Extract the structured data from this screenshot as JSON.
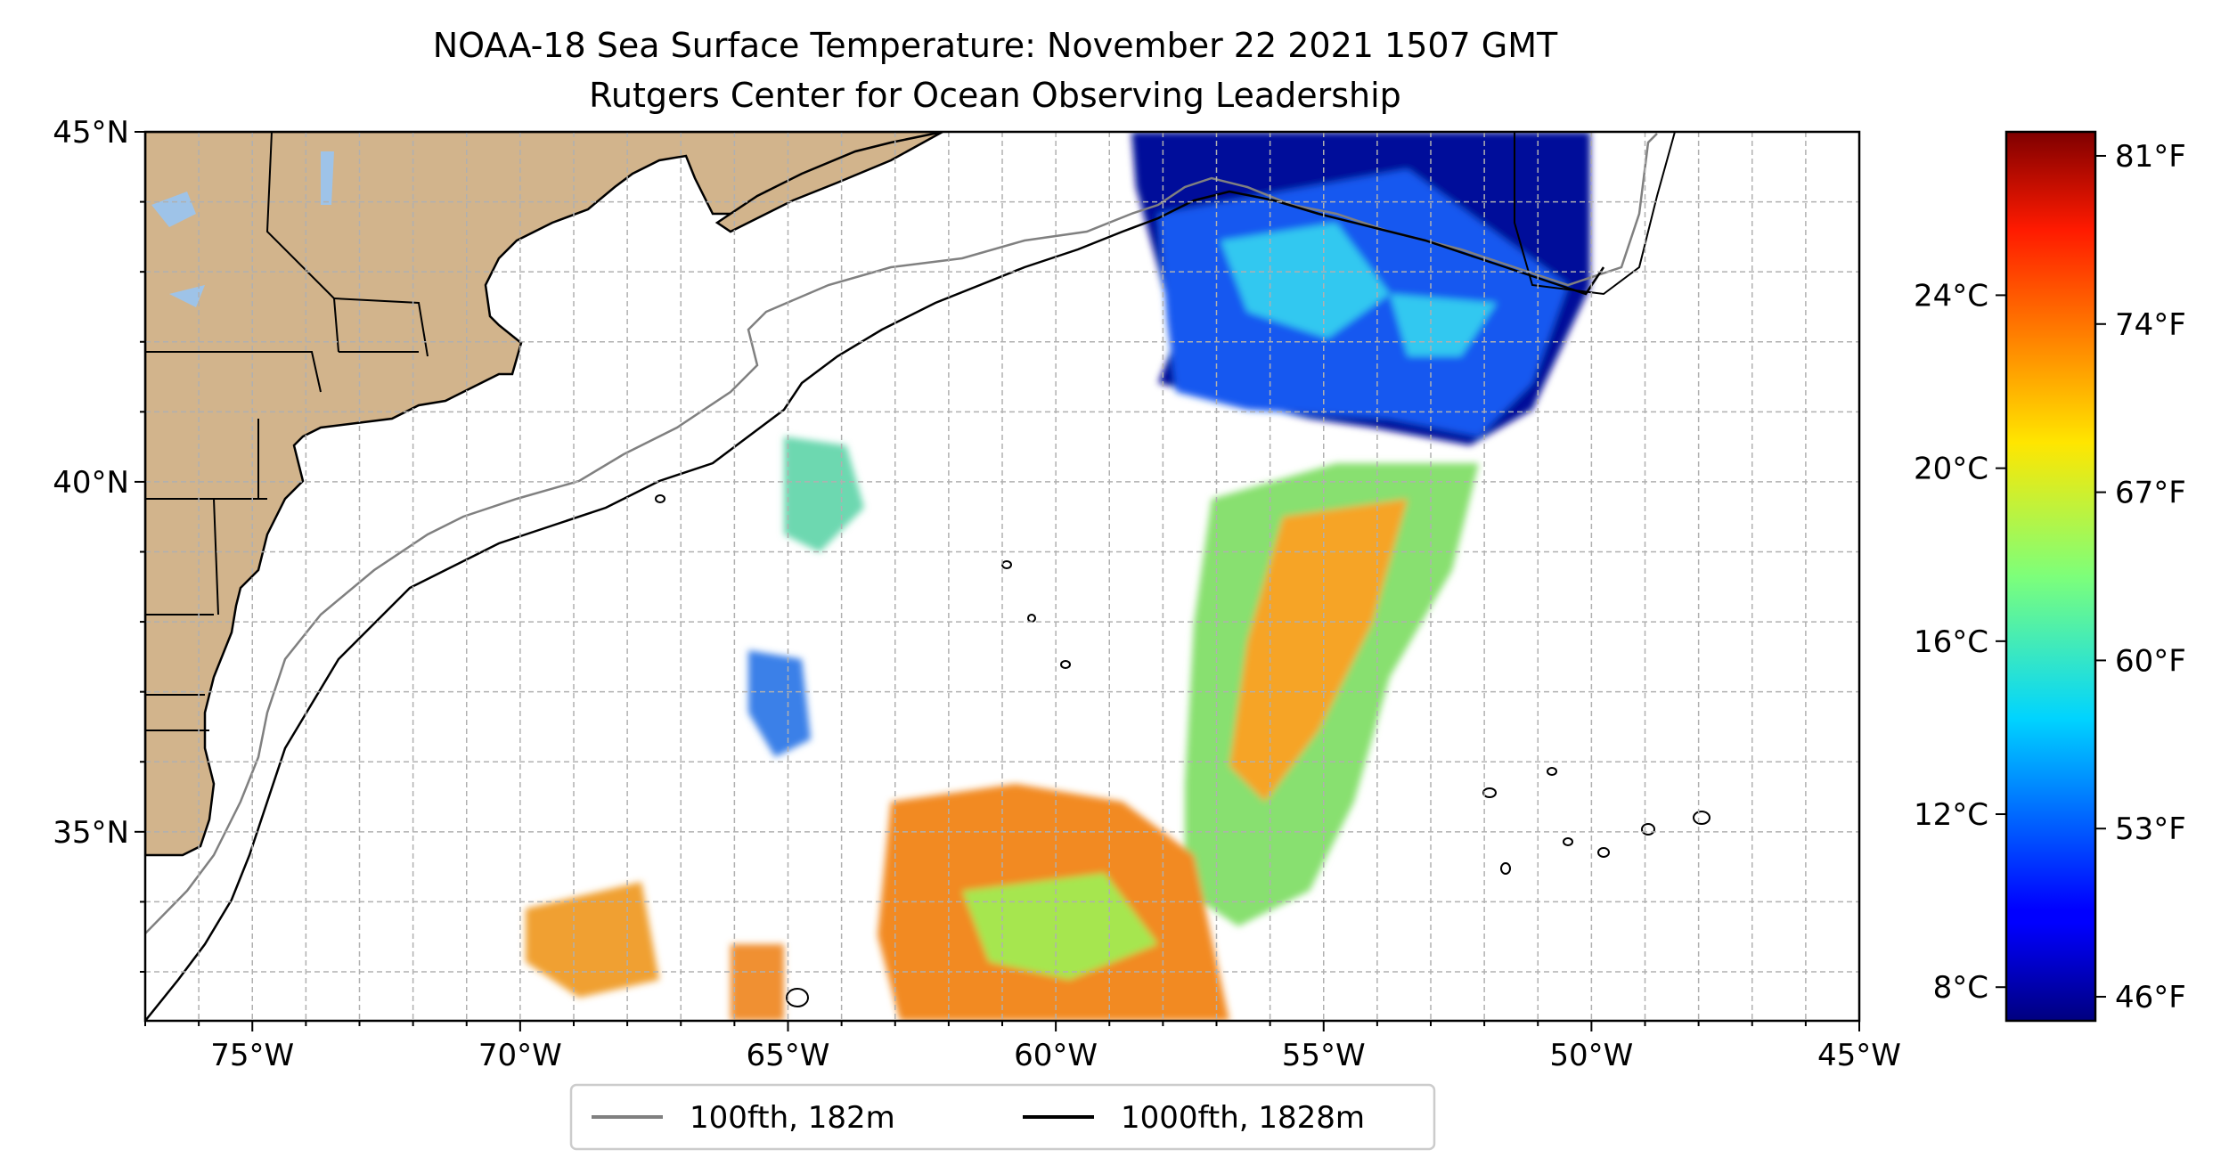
{
  "title": {
    "line1": "NOAA-18 Sea Surface Temperature: November 22 2021 1507 GMT",
    "line2": "Rutgers Center for Ocean Observing Leadership"
  },
  "map": {
    "lon_range": [
      -77,
      -45
    ],
    "lat_range": [
      32.3,
      45
    ],
    "lon_ticks": [
      {
        "value": -75,
        "label": "75°W"
      },
      {
        "value": -70,
        "label": "70°W"
      },
      {
        "value": -65,
        "label": "65°W"
      },
      {
        "value": -60,
        "label": "60°W"
      },
      {
        "value": -55,
        "label": "55°W"
      },
      {
        "value": -50,
        "label": "50°W"
      },
      {
        "value": -45,
        "label": "45°W"
      }
    ],
    "lat_ticks": [
      {
        "value": 45,
        "label": "45°N"
      },
      {
        "value": 40,
        "label": "40°N"
      },
      {
        "value": 35,
        "label": "35°N"
      }
    ],
    "gridlines": true,
    "land_color": "#d2b48c",
    "lake_color": "#9ec3e8"
  },
  "legend": {
    "placement": "bottom-center",
    "items": [
      {
        "label": "100fth, 182m",
        "color": "#808080"
      },
      {
        "label": "1000fth, 1828m",
        "color": "#000000"
      }
    ]
  },
  "colorbar": {
    "colormap": "jet",
    "range_f": [
      45,
      82
    ],
    "fahrenheit_ticks": [
      {
        "value": 46,
        "label": "46°F"
      },
      {
        "value": 53,
        "label": "53°F"
      },
      {
        "value": 60,
        "label": "60°F"
      },
      {
        "value": 67,
        "label": "67°F"
      },
      {
        "value": 74,
        "label": "74°F"
      },
      {
        "value": 81,
        "label": "81°F"
      }
    ],
    "celsius_ticks": [
      {
        "value": 8,
        "label": "8°C"
      },
      {
        "value": 12,
        "label": "12°C"
      },
      {
        "value": 16,
        "label": "16°C"
      },
      {
        "value": 20,
        "label": "20°C"
      },
      {
        "value": 24,
        "label": "24°C"
      }
    ]
  }
}
